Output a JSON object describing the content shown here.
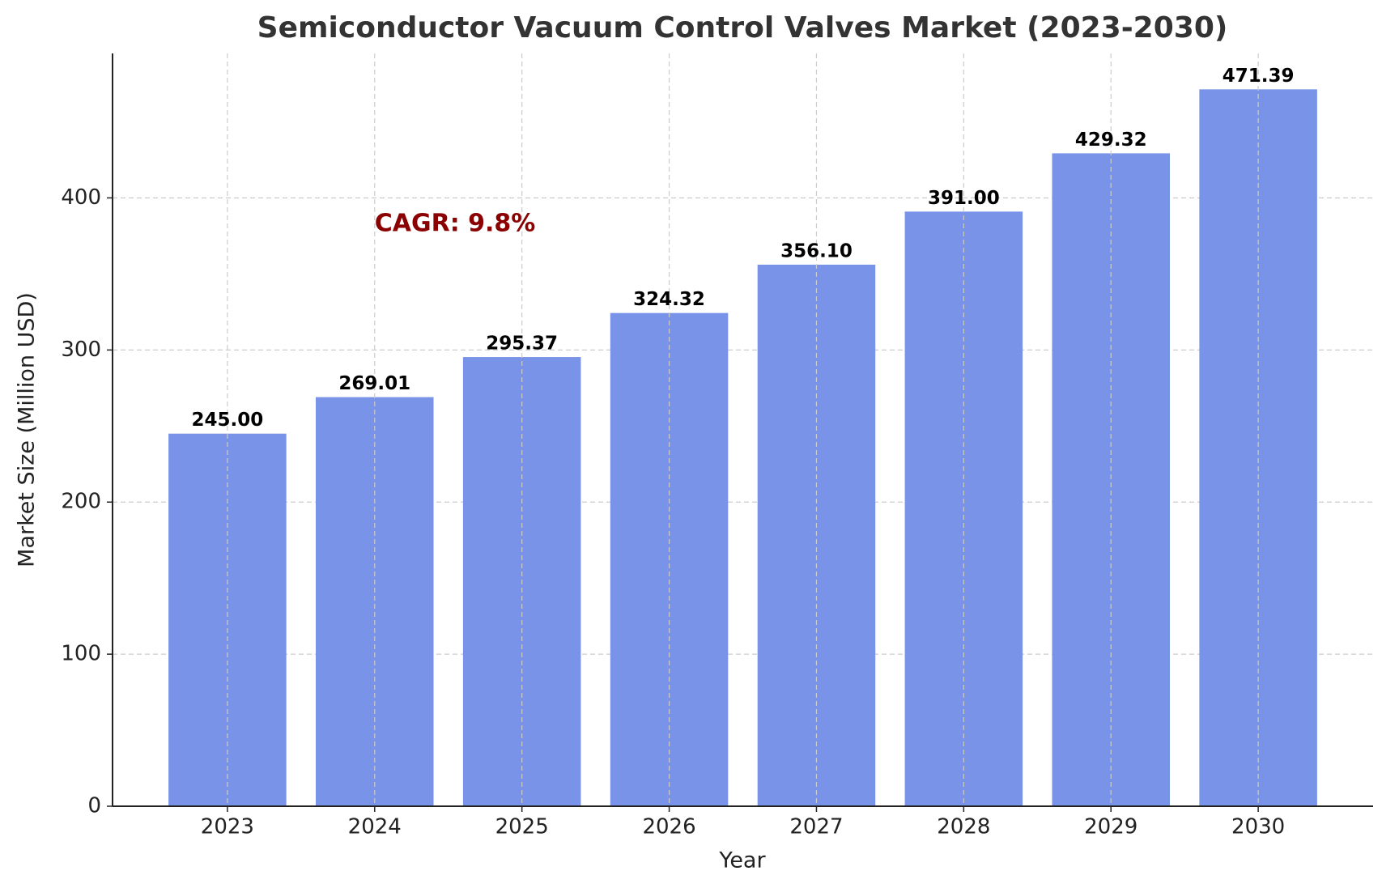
{
  "chart_data": {
    "type": "bar",
    "title": "Semiconductor Vacuum Control Valves Market (2023-2030)",
    "x_label": "Year",
    "y_label": "Market Size (Million USD)",
    "categories": [
      "2023",
      "2024",
      "2025",
      "2026",
      "2027",
      "2028",
      "2029",
      "2030"
    ],
    "values": [
      245.0,
      269.01,
      295.37,
      324.32,
      356.1,
      391.0,
      429.32,
      471.39
    ],
    "value_labels": [
      "245.00",
      "269.01",
      "295.37",
      "324.32",
      "356.10",
      "391.00",
      "429.32",
      "471.39"
    ],
    "color": "#7893e7",
    "ylim": [
      0,
      495
    ],
    "yticks": [
      0,
      100,
      200,
      300,
      400
    ],
    "grid": true,
    "annotation": "CAGR: 9.8%",
    "annotation_color": "#8b0000"
  }
}
